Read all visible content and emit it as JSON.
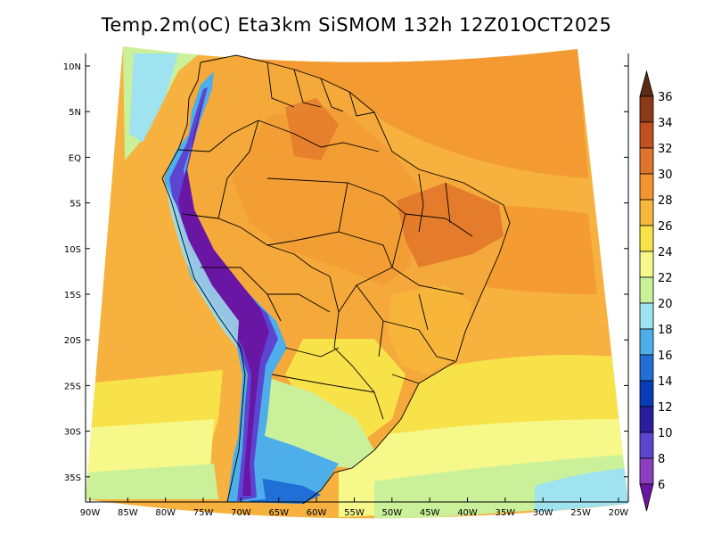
{
  "title": "Temp.2m(oC) Eta3km SiSMOM 132h 12Z01OCT2025",
  "map": {
    "lat_labels": [
      "10N",
      "5N",
      "EQ",
      "5S",
      "10S",
      "15S",
      "20S",
      "25S",
      "30S",
      "35S"
    ],
    "lon_labels": [
      "90W",
      "85W",
      "80W",
      "75W",
      "70W",
      "65W",
      "60W",
      "55W",
      "50W",
      "45W",
      "40W",
      "35W",
      "30W",
      "25W",
      "20W"
    ],
    "ocean_color": "#f6b13e",
    "land_color": "#f4a93a"
  },
  "colorbar": {
    "labels": [
      "36",
      "34",
      "32",
      "30",
      "28",
      "26",
      "24",
      "22",
      "20",
      "18",
      "16",
      "14",
      "12",
      "10",
      "8",
      "6"
    ],
    "colors": [
      "#5c2b14",
      "#8b3a1a",
      "#c0511f",
      "#e0742a",
      "#f3952f",
      "#f7b73b",
      "#f8e24a",
      "#f6f98a",
      "#caf19a",
      "#9fe3f0",
      "#4eaeea",
      "#1f6fd6",
      "#0b3cb8",
      "#2a1e9e",
      "#5b45d1",
      "#8b3fc0",
      "#6a16a4"
    ]
  }
}
